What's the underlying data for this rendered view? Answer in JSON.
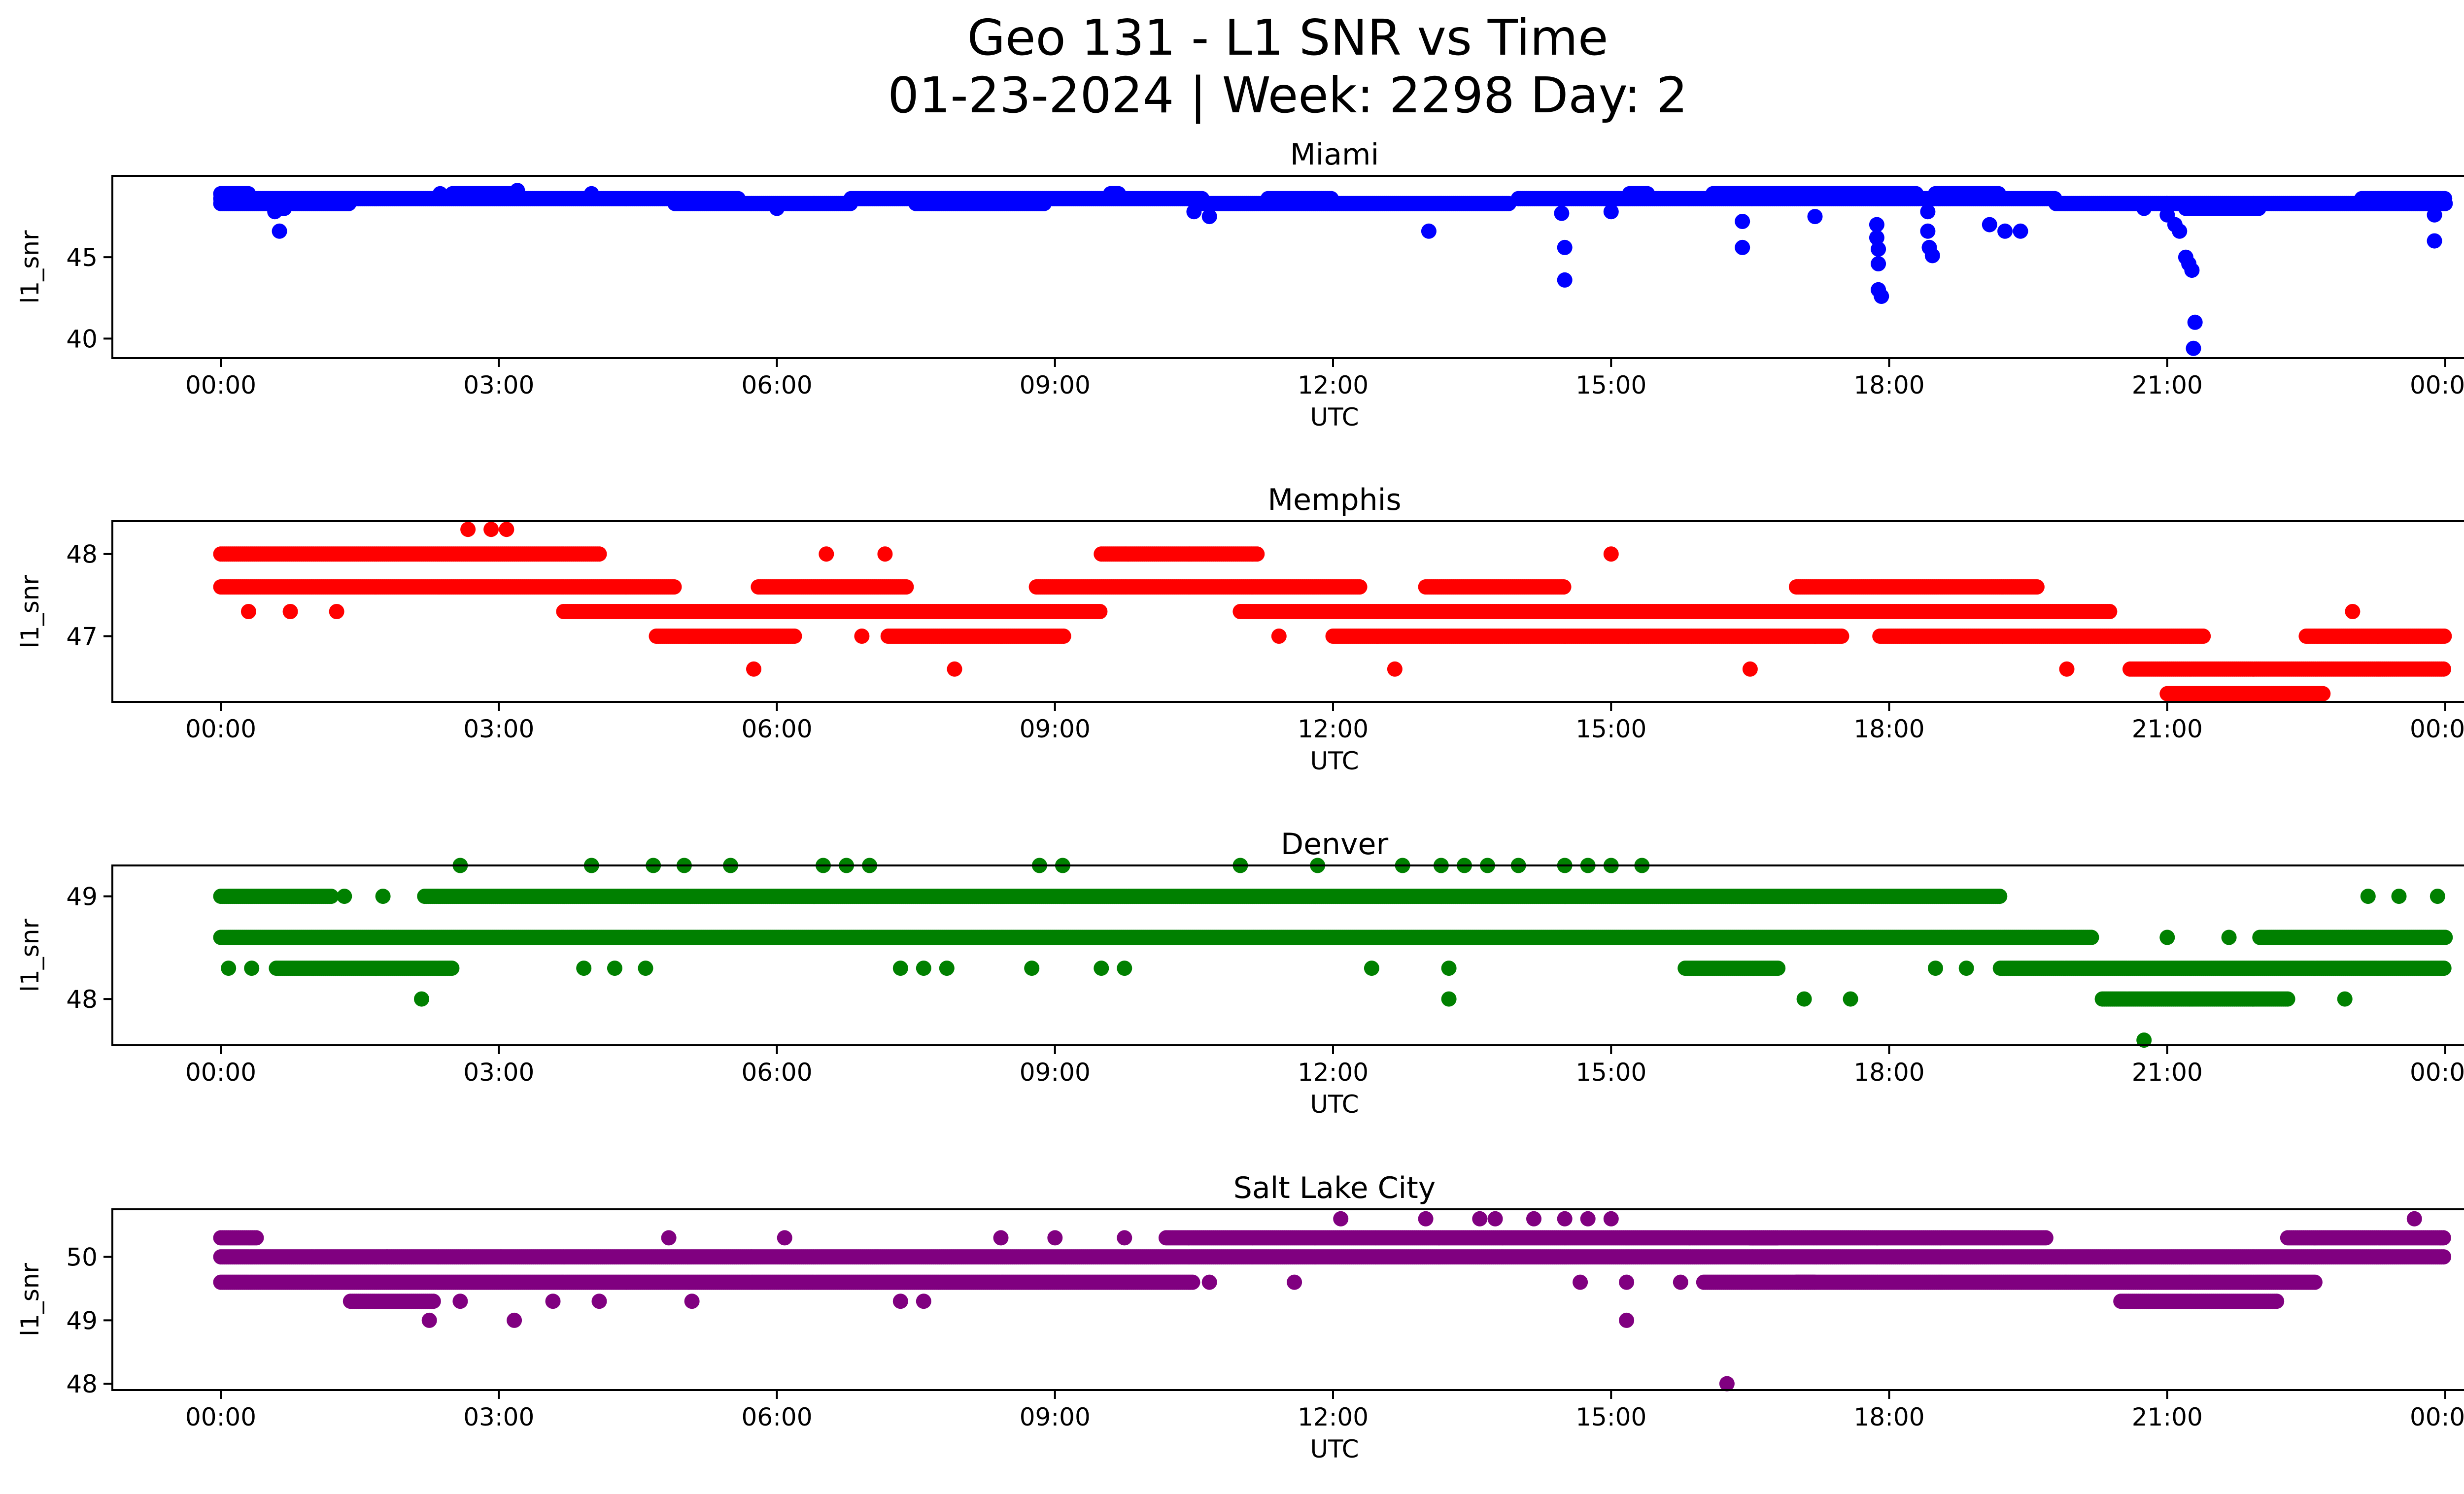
{
  "title": "Geo 131 - L1 SNR vs Time",
  "subtitle": "01-23-2024 | Week: 2298 Day: 2",
  "chart_data": [
    {
      "type": "scatter",
      "title": "Miami",
      "xlabel": "UTC",
      "ylabel": "l1_snr",
      "color": "#0000ff",
      "xlim": [
        "00:00",
        "24:00"
      ],
      "ylim": [
        38.8,
        50.0
      ],
      "xticks": [
        "00:00",
        "03:00",
        "06:00",
        "09:00",
        "12:00",
        "15:00",
        "18:00",
        "21:00",
        "00:00"
      ],
      "yticks": [
        40,
        45
      ],
      "bands": [
        {
          "y": 48.9,
          "ranges": [
            [
              0,
              0.3
            ],
            [
              2.5,
              3.2
            ],
            [
              9.6,
              9.7
            ],
            [
              15.2,
              15.4
            ],
            [
              16.1,
              18.3
            ],
            [
              18.5,
              19.2
            ]
          ]
        },
        {
          "y": 48.6,
          "ranges": [
            [
              0,
              4.9
            ],
            [
              4.9,
              5.6
            ],
            [
              6.8,
              10.6
            ],
            [
              11.3,
              12.0
            ],
            [
              14.0,
              19.8
            ],
            [
              23.1,
              24.0
            ]
          ]
        },
        {
          "y": 48.3,
          "ranges": [
            [
              0,
              1.4
            ],
            [
              4.9,
              6.8
            ],
            [
              7.5,
              8.9
            ],
            [
              10.6,
              13.9
            ],
            [
              19.8,
              21.0
            ],
            [
              21.0,
              24.0
            ]
          ]
        },
        {
          "y": 48.0,
          "ranges": [
            [
              0.6,
              0.7
            ],
            [
              21.2,
              22.0
            ]
          ]
        }
      ],
      "points": [
        {
          "x": "00:35",
          "y": 47.8
        },
        {
          "x": "00:38",
          "y": 46.6
        },
        {
          "x": "02:22",
          "y": 48.9
        },
        {
          "x": "03:12",
          "y": 49.1
        },
        {
          "x": "04:00",
          "y": 48.9
        },
        {
          "x": "06:00",
          "y": 48.0
        },
        {
          "x": "10:30",
          "y": 47.8
        },
        {
          "x": "10:40",
          "y": 47.5
        },
        {
          "x": "13:02",
          "y": 46.6
        },
        {
          "x": "14:28",
          "y": 47.7
        },
        {
          "x": "14:30",
          "y": 45.6
        },
        {
          "x": "14:30",
          "y": 43.6
        },
        {
          "x": "15:00",
          "y": 47.8
        },
        {
          "x": "16:25",
          "y": 47.2
        },
        {
          "x": "16:25",
          "y": 45.6
        },
        {
          "x": "17:12",
          "y": 47.5
        },
        {
          "x": "17:52",
          "y": 47.0
        },
        {
          "x": "17:52",
          "y": 46.2
        },
        {
          "x": "17:53",
          "y": 45.5
        },
        {
          "x": "17:53",
          "y": 44.6
        },
        {
          "x": "17:53",
          "y": 43.0
        },
        {
          "x": "17:55",
          "y": 42.6
        },
        {
          "x": "18:25",
          "y": 47.8
        },
        {
          "x": "18:25",
          "y": 46.6
        },
        {
          "x": "18:26",
          "y": 45.6
        },
        {
          "x": "18:28",
          "y": 45.1
        },
        {
          "x": "19:05",
          "y": 47.0
        },
        {
          "x": "19:15",
          "y": 46.6
        },
        {
          "x": "19:25",
          "y": 46.6
        },
        {
          "x": "20:45",
          "y": 48.0
        },
        {
          "x": "21:00",
          "y": 47.6
        },
        {
          "x": "21:05",
          "y": 47.0
        },
        {
          "x": "21:08",
          "y": 46.6
        },
        {
          "x": "21:12",
          "y": 45.0
        },
        {
          "x": "21:14",
          "y": 44.6
        },
        {
          "x": "21:16",
          "y": 44.2
        },
        {
          "x": "21:18",
          "y": 41.0
        },
        {
          "x": "21:17",
          "y": 39.4
        },
        {
          "x": "23:53",
          "y": 47.6
        },
        {
          "x": "23:53",
          "y": 46.0
        }
      ]
    },
    {
      "type": "scatter",
      "title": "Memphis",
      "xlabel": "UTC",
      "ylabel": "l1_snr",
      "color": "#ff0000",
      "xlim": [
        "00:00",
        "24:00"
      ],
      "ylim": [
        46.2,
        48.4
      ],
      "xticks": [
        "00:00",
        "03:00",
        "06:00",
        "09:00",
        "12:00",
        "15:00",
        "18:00",
        "21:00",
        "00:00"
      ],
      "yticks": [
        47,
        48
      ],
      "bands": [
        {
          "y": 48.0,
          "ranges": [
            [
              0,
              4.1
            ],
            [
              9.5,
              11.2
            ]
          ]
        },
        {
          "y": 47.6,
          "ranges": [
            [
              0,
              4.9
            ],
            [
              5.8,
              7.4
            ],
            [
              8.8,
              12.3
            ],
            [
              13.0,
              14.5
            ],
            [
              17.0,
              19.6
            ]
          ]
        },
        {
          "y": 47.3,
          "ranges": [
            [
              3.7,
              9.5
            ],
            [
              11.0,
              20.4
            ]
          ]
        },
        {
          "y": 47.0,
          "ranges": [
            [
              4.7,
              6.2
            ],
            [
              7.2,
              9.1
            ],
            [
              12.0,
              17.5
            ],
            [
              17.9,
              21.4
            ],
            [
              22.5,
              24.0
            ]
          ]
        },
        {
          "y": 46.6,
          "ranges": [
            [
              20.6,
              24.0
            ]
          ]
        },
        {
          "y": 46.3,
          "ranges": [
            [
              21.0,
              22.7
            ]
          ]
        }
      ],
      "points": [
        {
          "x": "00:18",
          "y": 47.3
        },
        {
          "x": "00:45",
          "y": 47.3
        },
        {
          "x": "01:15",
          "y": 47.3
        },
        {
          "x": "02:40",
          "y": 48.3
        },
        {
          "x": "02:55",
          "y": 48.3
        },
        {
          "x": "03:05",
          "y": 48.3
        },
        {
          "x": "05:45",
          "y": 46.6
        },
        {
          "x": "06:32",
          "y": 48.0
        },
        {
          "x": "07:10",
          "y": 48.0
        },
        {
          "x": "06:55",
          "y": 47.0
        },
        {
          "x": "07:55",
          "y": 46.6
        },
        {
          "x": "11:25",
          "y": 47.0
        },
        {
          "x": "12:40",
          "y": 46.6
        },
        {
          "x": "15:00",
          "y": 48.0
        },
        {
          "x": "16:30",
          "y": 46.6
        },
        {
          "x": "19:55",
          "y": 46.6
        },
        {
          "x": "23:00",
          "y": 47.3
        }
      ]
    },
    {
      "type": "scatter",
      "title": "Denver",
      "xlabel": "UTC",
      "ylabel": "l1_snr",
      "color": "#008000",
      "xlim": [
        "00:00",
        "24:00"
      ],
      "ylim": [
        47.55,
        49.3
      ],
      "xticks": [
        "00:00",
        "03:00",
        "06:00",
        "09:00",
        "12:00",
        "15:00",
        "18:00",
        "21:00",
        "00:00"
      ],
      "yticks": [
        48,
        49
      ],
      "bands": [
        {
          "y": 49.0,
          "ranges": [
            [
              0,
              1.2
            ],
            [
              2.2,
              19.2
            ]
          ]
        },
        {
          "y": 48.6,
          "ranges": [
            [
              0,
              20.2
            ],
            [
              22.0,
              24.0
            ]
          ]
        },
        {
          "y": 48.3,
          "ranges": [
            [
              0.6,
              2.5
            ],
            [
              15.8,
              16.8
            ],
            [
              19.2,
              24.0
            ]
          ]
        },
        {
          "y": 48.0,
          "ranges": [
            [
              20.3,
              22.3
            ]
          ]
        }
      ],
      "points": [
        {
          "x": "00:05",
          "y": 48.3
        },
        {
          "x": "00:20",
          "y": 48.3
        },
        {
          "x": "01:20",
          "y": 49.0
        },
        {
          "x": "01:45",
          "y": 49.0
        },
        {
          "x": "02:10",
          "y": 48.0
        },
        {
          "x": "02:35",
          "y": 49.3
        },
        {
          "x": "03:55",
          "y": 48.3
        },
        {
          "x": "04:00",
          "y": 49.3
        },
        {
          "x": "04:15",
          "y": 48.3
        },
        {
          "x": "04:35",
          "y": 48.3
        },
        {
          "x": "04:40",
          "y": 49.3
        },
        {
          "x": "05:00",
          "y": 49.3
        },
        {
          "x": "05:30",
          "y": 49.3
        },
        {
          "x": "06:30",
          "y": 49.3
        },
        {
          "x": "06:45",
          "y": 49.3
        },
        {
          "x": "07:00",
          "y": 49.3
        },
        {
          "x": "07:20",
          "y": 48.3
        },
        {
          "x": "07:35",
          "y": 48.3
        },
        {
          "x": "07:50",
          "y": 48.3
        },
        {
          "x": "08:50",
          "y": 49.3
        },
        {
          "x": "09:05",
          "y": 49.3
        },
        {
          "x": "08:45",
          "y": 48.3
        },
        {
          "x": "09:30",
          "y": 48.3
        },
        {
          "x": "09:45",
          "y": 48.3
        },
        {
          "x": "11:00",
          "y": 49.3
        },
        {
          "x": "11:50",
          "y": 49.3
        },
        {
          "x": "12:25",
          "y": 48.3
        },
        {
          "x": "12:45",
          "y": 49.3
        },
        {
          "x": "13:10",
          "y": 49.3
        },
        {
          "x": "13:25",
          "y": 49.3
        },
        {
          "x": "13:15",
          "y": 48.3
        },
        {
          "x": "13:15",
          "y": 48.0
        },
        {
          "x": "13:40",
          "y": 49.3
        },
        {
          "x": "14:00",
          "y": 49.3
        },
        {
          "x": "14:30",
          "y": 49.3
        },
        {
          "x": "14:45",
          "y": 49.3
        },
        {
          "x": "15:00",
          "y": 49.3
        },
        {
          "x": "15:20",
          "y": 49.3
        },
        {
          "x": "17:05",
          "y": 48.0
        },
        {
          "x": "17:35",
          "y": 48.0
        },
        {
          "x": "18:30",
          "y": 48.3
        },
        {
          "x": "18:50",
          "y": 48.3
        },
        {
          "x": "20:45",
          "y": 47.6
        },
        {
          "x": "21:00",
          "y": 48.6
        },
        {
          "x": "21:40",
          "y": 48.6
        },
        {
          "x": "22:55",
          "y": 48.0
        },
        {
          "x": "23:10",
          "y": 49.0
        },
        {
          "x": "23:30",
          "y": 49.0
        },
        {
          "x": "23:55",
          "y": 49.0
        }
      ]
    },
    {
      "type": "scatter",
      "title": "Salt Lake City",
      "xlabel": "UTC",
      "ylabel": "l1_snr",
      "color": "#800080",
      "xlim": [
        "00:00",
        "24:00"
      ],
      "ylim": [
        47.9,
        50.75
      ],
      "xticks": [
        "00:00",
        "03:00",
        "06:00",
        "09:00",
        "12:00",
        "15:00",
        "18:00",
        "21:00",
        "00:00"
      ],
      "yticks": [
        48,
        49,
        50
      ],
      "bands": [
        {
          "y": 50.3,
          "ranges": [
            [
              0,
              0.4
            ],
            [
              10.2,
              16.8
            ],
            [
              16.5,
              19.7
            ],
            [
              22.3,
              24.0
            ]
          ]
        },
        {
          "y": 50.0,
          "ranges": [
            [
              0,
              1.8
            ],
            [
              1.8,
              24.0
            ]
          ]
        },
        {
          "y": 49.6,
          "ranges": [
            [
              0,
              10.5
            ],
            [
              16.0,
              17.2
            ],
            [
              17.0,
              22.6
            ]
          ]
        },
        {
          "y": 49.3,
          "ranges": [
            [
              1.4,
              2.3
            ],
            [
              20.5,
              22.2
            ]
          ]
        }
      ],
      "points": [
        {
          "x": "02:15",
          "y": 49.0
        },
        {
          "x": "02:35",
          "y": 49.3
        },
        {
          "x": "03:10",
          "y": 49.0
        },
        {
          "x": "03:35",
          "y": 49.3
        },
        {
          "x": "04:05",
          "y": 49.3
        },
        {
          "x": "04:50",
          "y": 50.3
        },
        {
          "x": "05:05",
          "y": 49.3
        },
        {
          "x": "06:05",
          "y": 50.3
        },
        {
          "x": "07:20",
          "y": 49.3
        },
        {
          "x": "07:35",
          "y": 49.3
        },
        {
          "x": "08:25",
          "y": 50.3
        },
        {
          "x": "09:00",
          "y": 50.3
        },
        {
          "x": "09:45",
          "y": 50.3
        },
        {
          "x": "10:40",
          "y": 49.6
        },
        {
          "x": "11:35",
          "y": 49.6
        },
        {
          "x": "12:05",
          "y": 50.6
        },
        {
          "x": "13:00",
          "y": 50.6
        },
        {
          "x": "13:35",
          "y": 50.6
        },
        {
          "x": "13:45",
          "y": 50.6
        },
        {
          "x": "14:10",
          "y": 50.6
        },
        {
          "x": "14:30",
          "y": 50.6
        },
        {
          "x": "14:45",
          "y": 50.6
        },
        {
          "x": "15:00",
          "y": 50.6
        },
        {
          "x": "14:40",
          "y": 49.6
        },
        {
          "x": "15:10",
          "y": 49.6
        },
        {
          "x": "15:10",
          "y": 49.0
        },
        {
          "x": "15:45",
          "y": 49.6
        },
        {
          "x": "16:15",
          "y": 48.0
        },
        {
          "x": "23:40",
          "y": 50.6
        }
      ]
    }
  ]
}
